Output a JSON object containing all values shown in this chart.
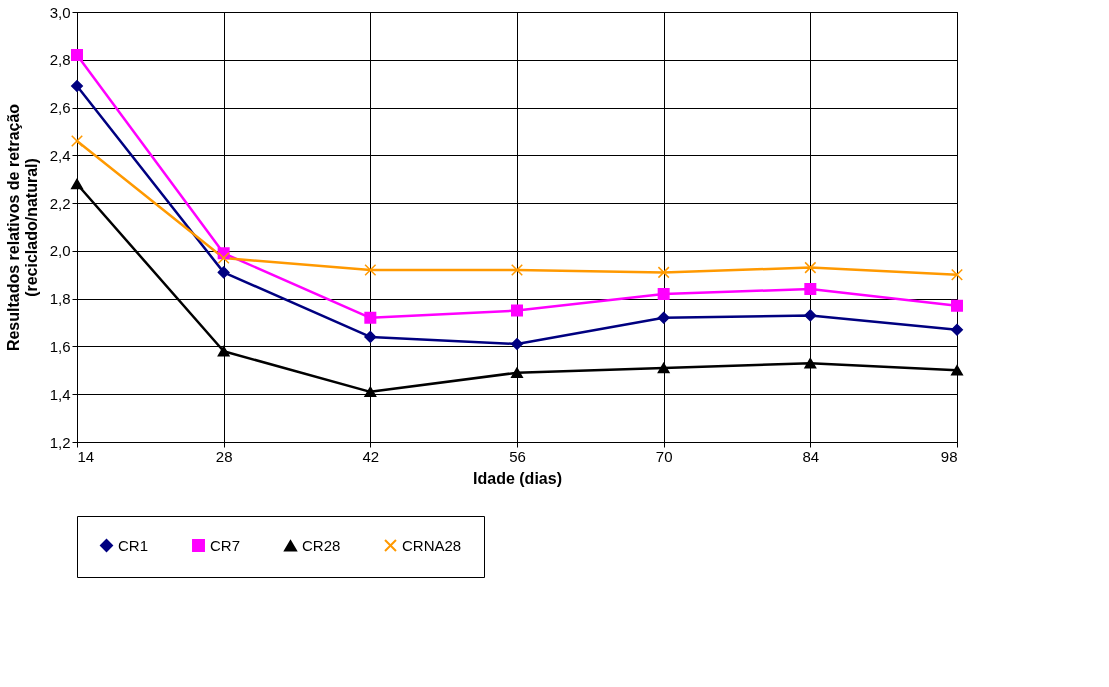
{
  "chart_data": {
    "type": "line",
    "xlabel": "Idade (dias)",
    "ylabel": "Resultados relativos de retração\n(reciclado/natural)",
    "x": [
      14,
      28,
      42,
      56,
      70,
      84,
      98
    ],
    "series": [
      {
        "name": "CR1",
        "color": "#000080",
        "marker": "diamond",
        "values": [
          2.69,
          1.91,
          1.64,
          1.61,
          1.72,
          1.73,
          1.67
        ]
      },
      {
        "name": "CR7",
        "color": "#ff00ff",
        "marker": "square",
        "values": [
          2.82,
          1.99,
          1.72,
          1.75,
          1.82,
          1.84,
          1.77
        ]
      },
      {
        "name": "CR28",
        "color": "#000000",
        "marker": "triangle",
        "values": [
          2.28,
          1.58,
          1.41,
          1.49,
          1.51,
          1.53,
          1.5
        ]
      },
      {
        "name": "CRNA28",
        "color": "#ff9900",
        "marker": "cross",
        "values": [
          2.46,
          1.97,
          1.92,
          1.92,
          1.91,
          1.93,
          1.9
        ]
      }
    ],
    "xlim": [
      14,
      98
    ],
    "xticks": [
      14,
      28,
      42,
      56,
      70,
      84,
      98
    ],
    "ylim": [
      1.2,
      3.0
    ],
    "yticks": [
      {
        "value": 1.2,
        "label": "1,2"
      },
      {
        "value": 1.4,
        "label": "1,4"
      },
      {
        "value": 1.6,
        "label": "1,6"
      },
      {
        "value": 1.8,
        "label": "1,8"
      },
      {
        "value": 2.0,
        "label": "2,0"
      },
      {
        "value": 2.2,
        "label": "2,2"
      },
      {
        "value": 2.4,
        "label": "2,4"
      },
      {
        "value": 2.6,
        "label": "2,6"
      },
      {
        "value": 2.8,
        "label": "2,8"
      },
      {
        "value": 3.0,
        "label": "3,0"
      }
    ],
    "grid": true,
    "legend": "bottom",
    "line_style": "solid"
  }
}
